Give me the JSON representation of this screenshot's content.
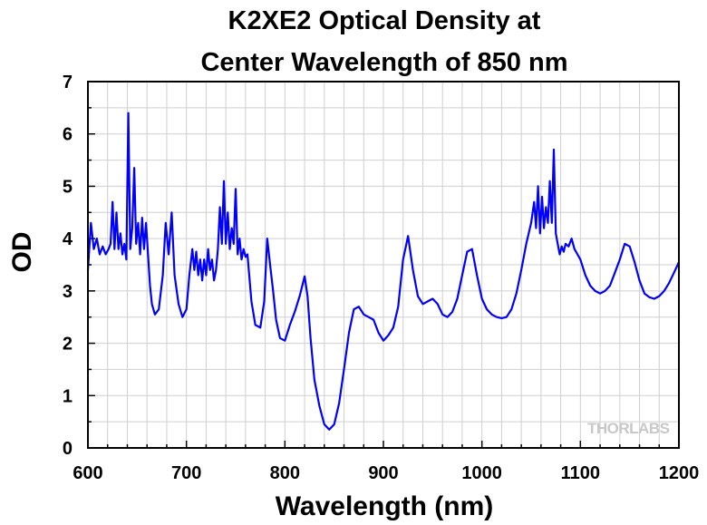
{
  "chart_data": {
    "type": "line",
    "title_lines": [
      "K2XE2 Optical Density at",
      "Center Wavelength of 850 nm"
    ],
    "xlabel": "Wavelength (nm)",
    "ylabel": "OD",
    "xlim": [
      600,
      1200
    ],
    "ylim": [
      0,
      7
    ],
    "xticks": [
      "600",
      "700",
      "800",
      "900",
      "1000",
      "1100",
      "1200"
    ],
    "yticks": [
      "0",
      "1",
      "2",
      "3",
      "4",
      "5",
      "6",
      "7"
    ],
    "grid": true,
    "line_color": "#0000ff",
    "watermark": "THORLABS",
    "series": [
      {
        "x": [
          600,
          603,
          606,
          609,
          612,
          615,
          618,
          621,
          623,
          625,
          627,
          629,
          631,
          633,
          635,
          637,
          639,
          641,
          643,
          645,
          647,
          649,
          651,
          653,
          655,
          657,
          659,
          661,
          663,
          665,
          668,
          672,
          676,
          679,
          682,
          685,
          688,
          692,
          696,
          700,
          703,
          706,
          708,
          710,
          712,
          714,
          716,
          718,
          720,
          722,
          724,
          726,
          728,
          730,
          732,
          734,
          736,
          738,
          740,
          742,
          744,
          746,
          748,
          750,
          752,
          754,
          756,
          758,
          760,
          762,
          766,
          770,
          775,
          779,
          782,
          785,
          788,
          791,
          795,
          800,
          805,
          810,
          815,
          820,
          823,
          826,
          830,
          835,
          840,
          845,
          850,
          855,
          860,
          865,
          870,
          875,
          880,
          885,
          890,
          895,
          900,
          905,
          910,
          915,
          920,
          925,
          930,
          935,
          940,
          945,
          950,
          955,
          960,
          965,
          970,
          975,
          980,
          985,
          990,
          995,
          1000,
          1005,
          1010,
          1015,
          1020,
          1025,
          1030,
          1035,
          1040,
          1045,
          1050,
          1053,
          1055,
          1057,
          1059,
          1061,
          1063,
          1065,
          1067,
          1069,
          1071,
          1073,
          1075,
          1077,
          1079,
          1081,
          1083,
          1085,
          1088,
          1091,
          1094,
          1097,
          1100,
          1105,
          1110,
          1115,
          1120,
          1125,
          1130,
          1135,
          1140,
          1145,
          1150,
          1155,
          1160,
          1165,
          1170,
          1175,
          1180,
          1185,
          1190,
          1195,
          1200
        ],
        "y": [
          3.4,
          4.3,
          3.8,
          4.0,
          3.7,
          3.85,
          3.7,
          3.8,
          3.9,
          4.7,
          3.8,
          4.5,
          3.8,
          4.1,
          3.7,
          3.9,
          3.6,
          6.4,
          3.8,
          4.2,
          5.35,
          3.9,
          4.3,
          3.7,
          4.4,
          3.8,
          4.3,
          3.7,
          3.1,
          2.75,
          2.55,
          2.65,
          3.3,
          4.3,
          3.7,
          4.5,
          3.3,
          2.75,
          2.5,
          2.65,
          3.3,
          3.8,
          3.4,
          3.75,
          3.3,
          3.6,
          3.2,
          3.6,
          3.3,
          3.8,
          3.4,
          3.6,
          3.2,
          3.4,
          3.8,
          4.6,
          3.9,
          5.1,
          3.9,
          4.5,
          3.8,
          4.2,
          3.9,
          4.95,
          3.7,
          4.0,
          3.6,
          3.8,
          3.65,
          3.7,
          2.8,
          2.35,
          2.3,
          2.8,
          4.0,
          3.5,
          3.0,
          2.45,
          2.1,
          2.05,
          2.35,
          2.6,
          2.9,
          3.28,
          2.9,
          2.1,
          1.3,
          0.8,
          0.45,
          0.35,
          0.45,
          0.85,
          1.5,
          2.2,
          2.65,
          2.7,
          2.55,
          2.5,
          2.45,
          2.2,
          2.05,
          2.15,
          2.3,
          2.7,
          3.6,
          4.05,
          3.4,
          2.9,
          2.75,
          2.8,
          2.85,
          2.75,
          2.55,
          2.5,
          2.6,
          2.85,
          3.3,
          3.75,
          3.8,
          3.3,
          2.85,
          2.65,
          2.55,
          2.5,
          2.48,
          2.5,
          2.65,
          2.95,
          3.4,
          3.9,
          4.3,
          4.7,
          4.2,
          5.0,
          4.1,
          4.8,
          4.2,
          4.6,
          4.3,
          5.1,
          4.3,
          5.7,
          4.1,
          3.9,
          3.7,
          3.85,
          3.75,
          3.9,
          3.85,
          4.0,
          3.8,
          3.7,
          3.6,
          3.3,
          3.1,
          3.0,
          2.95,
          3.0,
          3.1,
          3.35,
          3.6,
          3.9,
          3.85,
          3.55,
          3.2,
          2.95,
          2.88,
          2.85,
          2.9,
          3.0,
          3.15,
          3.35,
          3.55
        ]
      }
    ]
  }
}
